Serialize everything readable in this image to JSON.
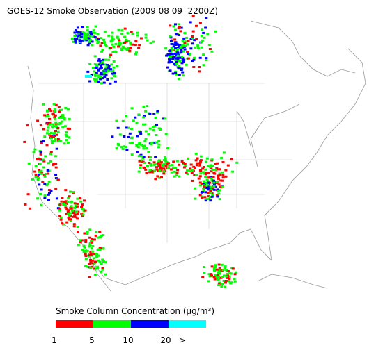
{
  "header": {
    "title": "GOES-12 Smoke Observation (2009 08 09  2200Z)"
  },
  "legend": {
    "title": "Smoke Column Concentration (μg/m³)",
    "bins": [
      {
        "color": "#ff0000"
      },
      {
        "color": "#00ff00"
      },
      {
        "color": "#0000ff"
      },
      {
        "color": "#00ffff"
      }
    ],
    "labels": [
      "1",
      "5",
      "10",
      "20",
      ">"
    ]
  }
}
